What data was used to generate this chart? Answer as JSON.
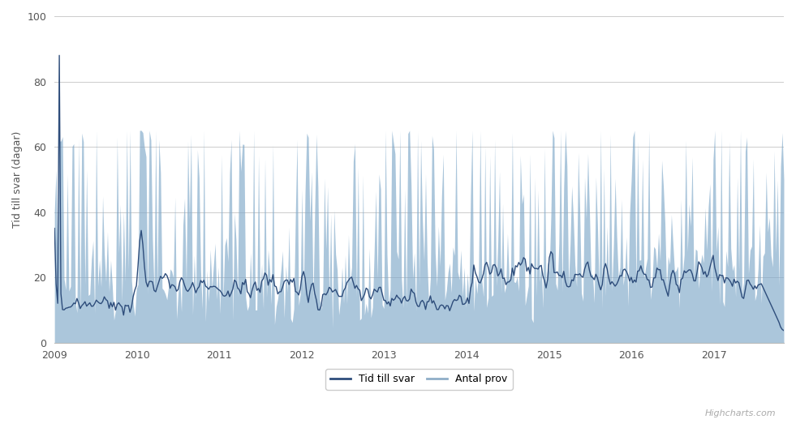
{
  "ylabel": "Tid till svar (dagar)",
  "ylim": [
    0,
    100
  ],
  "yticks": [
    0,
    20,
    40,
    60,
    80,
    100
  ],
  "xlim_start": 2009.0,
  "xlim_end": 2017.85,
  "xticks": [
    2009,
    2010,
    2011,
    2012,
    2013,
    2014,
    2015,
    2016,
    2017
  ],
  "line_color": "#2e4d7b",
  "area_color": "#7fa8c9",
  "area_alpha": 0.65,
  "bg_color": "#ffffff",
  "grid_color": "#cccccc",
  "legend_labels": [
    "Tid till svar",
    "Antal prov"
  ],
  "legend_line_colors": [
    "#2e4d7b",
    "#8faec8"
  ],
  "watermark": "Highcharts.com",
  "n_weeks": 455
}
